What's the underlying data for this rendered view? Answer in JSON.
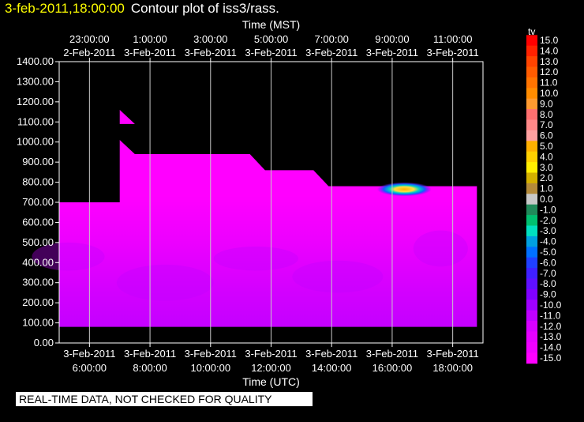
{
  "header": {
    "timestamp": "3-feb-2011,18:00:00",
    "title": "Contour plot of iss3/rass."
  },
  "disclaimer": "REAL-TIME DATA, NOT CHECKED FOR QUALITY",
  "chart_data": {
    "type": "heatmap",
    "title": "Contour plot of iss3/rass.",
    "xlabel": "Time (UTC)",
    "x2label": "Time (MST)",
    "ylabel": "",
    "xlim_hours_utc": [
      5.0,
      19.0
    ],
    "ylim": [
      0,
      1400
    ],
    "grid": true,
    "y_ticks": [
      "1400.00",
      "1300.00",
      "1200.00",
      "1100.00",
      "1000.00",
      "900.00",
      "800.00",
      "700.00",
      "600.00",
      "500.00",
      "400.00",
      "300.00",
      "200.00",
      "100.00",
      "0.00"
    ],
    "x_ticks_utc": [
      {
        "date": "3-Feb-2011",
        "time": "6:00:00"
      },
      {
        "date": "3-Feb-2011",
        "time": "8:00:00"
      },
      {
        "date": "3-Feb-2011",
        "time": "10:00:00"
      },
      {
        "date": "3-Feb-2011",
        "time": "12:00:00"
      },
      {
        "date": "3-Feb-2011",
        "time": "14:00:00"
      },
      {
        "date": "3-Feb-2011",
        "time": "16:00:00"
      },
      {
        "date": "3-Feb-2011",
        "time": "18:00:00"
      }
    ],
    "x_ticks_mst": [
      {
        "time": "23:00:00",
        "date": "2-Feb-2011"
      },
      {
        "time": "1:00:00",
        "date": "3-Feb-2011"
      },
      {
        "time": "3:00:00",
        "date": "3-Feb-2011"
      },
      {
        "time": "5:00:00",
        "date": "3-Feb-2011"
      },
      {
        "time": "7:00:00",
        "date": "3-Feb-2011"
      },
      {
        "time": "9:00:00",
        "date": "3-Feb-2011"
      },
      {
        "time": "11:00:00",
        "date": "3-Feb-2011"
      }
    ],
    "data_top_profile": [
      {
        "t": 5.0,
        "h": 700
      },
      {
        "t": 7.0,
        "h": 700
      },
      {
        "t": 7.0,
        "h": 1010
      },
      {
        "t": 7.5,
        "h": 940
      },
      {
        "t": 11.3,
        "h": 940
      },
      {
        "t": 11.8,
        "h": 860
      },
      {
        "t": 13.4,
        "h": 860
      },
      {
        "t": 13.9,
        "h": 780
      },
      {
        "t": 18.8,
        "h": 780
      }
    ],
    "data_bottom": 80,
    "data_x_end": 18.8,
    "data_patch": {
      "t_start": 7.0,
      "t_end": 7.5,
      "h_top": 1160,
      "h_bottom": 1090
    },
    "warm_pocket": {
      "t_center": 16.4,
      "h_center": 765,
      "max_value": 5.0
    },
    "colorbar": {
      "label": "tv",
      "levels": [
        "15.0",
        "14.0",
        "13.0",
        "12.0",
        "11.0",
        "10.0",
        "9.0",
        "8.0",
        "7.0",
        "6.0",
        "5.0",
        "4.0",
        "3.0",
        "2.0",
        "1.0",
        "0.0",
        "-1.0",
        "-2.0",
        "-3.0",
        "-4.0",
        "-5.0",
        "-6.0",
        "-7.0",
        "-8.0",
        "-9.0",
        "-10.0",
        "-11.0",
        "-12.0",
        "-13.0",
        "-14.0",
        "-15.0"
      ],
      "colors": [
        "#ff0000",
        "#ff2200",
        "#ff4400",
        "#ff5c00",
        "#ff7400",
        "#ff8c00",
        "#ff9a30",
        "#ff7070",
        "#ff8888",
        "#ffa0a0",
        "#ffb000",
        "#ffd000",
        "#ffee00",
        "#d4b000",
        "#b48a3a",
        "#c8c8c8",
        "#208a5a",
        "#00c070",
        "#00e0c0",
        "#00a0e0",
        "#0070ff",
        "#2040ff",
        "#4020ff",
        "#6010ff",
        "#8000ff",
        "#a000ff",
        "#c000ff",
        "#d800ff",
        "#e600ff",
        "#f000ff",
        "#ff00ff"
      ]
    }
  }
}
